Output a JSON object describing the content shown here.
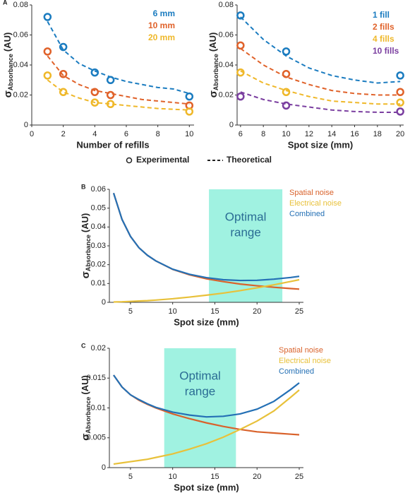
{
  "chart_data": [
    {
      "type": "scatter",
      "panel": "A",
      "xlabel": "Number of refills",
      "ylabel": {
        "symbol": "σ",
        "subscript": "Absorbance",
        "unit": "(AU)"
      },
      "xlim": [
        0,
        10.3
      ],
      "xticks": [
        0,
        2,
        4,
        6,
        8,
        10
      ],
      "ylim": [
        0,
        0.08
      ],
      "yticks": [
        0,
        0.02,
        0.04,
        0.06,
        0.08
      ],
      "x": [
        1,
        2,
        4,
        5,
        10
      ],
      "theory_x": [
        1,
        2,
        3,
        4,
        5,
        6,
        7,
        8,
        9,
        10
      ],
      "series": [
        {
          "name": "6 mm",
          "color": "#1b7cc0",
          "values": [
            0.072,
            0.052,
            0.035,
            0.03,
            0.019
          ],
          "theory_values": [
            0.069,
            0.05,
            0.041,
            0.036,
            0.032,
            0.029,
            0.027,
            0.025,
            0.024,
            0.021
          ]
        },
        {
          "name": "10 mm",
          "color": "#e0622a",
          "values": [
            0.049,
            0.034,
            0.022,
            0.02,
            0.013
          ],
          "theory_values": [
            0.046,
            0.033,
            0.027,
            0.023,
            0.021,
            0.019,
            0.017,
            0.016,
            0.015,
            0.014
          ]
        },
        {
          "name": "20 mm",
          "color": "#efb82a",
          "values": [
            0.033,
            0.022,
            0.015,
            0.014,
            0.009
          ],
          "theory_values": [
            0.03,
            0.022,
            0.018,
            0.015,
            0.014,
            0.013,
            0.012,
            0.011,
            0.0105,
            0.01
          ]
        }
      ],
      "marker_legend": {
        "experimental": "Experimental",
        "theoretical": "Theoretical"
      }
    },
    {
      "type": "scatter",
      "xlabel": "Spot size (mm)",
      "ylabel": {
        "symbol": "σ",
        "subscript": "Absorbance",
        "unit": "(AU)"
      },
      "xlim": [
        5.7,
        20.3
      ],
      "xticks": [
        6,
        8,
        10,
        12,
        14,
        16,
        18,
        20
      ],
      "ylim": [
        0,
        0.08
      ],
      "yticks": [
        0,
        0.02,
        0.04,
        0.06,
        0.08
      ],
      "x": [
        6,
        10,
        20
      ],
      "theory_x": [
        6,
        8,
        10,
        12,
        14,
        16,
        18,
        20
      ],
      "series": [
        {
          "name": "1 fill",
          "color": "#1b7cc0",
          "values": [
            0.073,
            0.049,
            0.033
          ],
          "theory_values": [
            0.072,
            0.057,
            0.046,
            0.038,
            0.033,
            0.03,
            0.028,
            0.029
          ]
        },
        {
          "name": "2 fills",
          "color": "#e0622a",
          "values": [
            0.053,
            0.034,
            0.022
          ],
          "theory_values": [
            0.051,
            0.04,
            0.032,
            0.027,
            0.023,
            0.021,
            0.02,
            0.02
          ]
        },
        {
          "name": "4 fills",
          "color": "#efb82a",
          "values": [
            0.035,
            0.022,
            0.015
          ],
          "theory_values": [
            0.036,
            0.028,
            0.023,
            0.019,
            0.016,
            0.015,
            0.014,
            0.014
          ]
        },
        {
          "name": "10 fills",
          "color": "#7b3fa0",
          "values": [
            0.019,
            0.013,
            0.009
          ],
          "theory_values": [
            0.022,
            0.017,
            0.014,
            0.012,
            0.01,
            0.009,
            0.0085,
            0.0085
          ]
        }
      ]
    },
    {
      "type": "line",
      "panel": "B",
      "xlabel": "Spot size (mm)",
      "ylabel": {
        "symbol": "σ",
        "subscript": "Absorbance",
        "unit": "(AU)"
      },
      "xlim": [
        2.5,
        25.5
      ],
      "xticks": [
        5,
        10,
        15,
        20,
        25
      ],
      "ylim": [
        0,
        0.06
      ],
      "yticks": [
        0,
        0.01,
        0.02,
        0.03,
        0.04,
        0.05,
        0.06
      ],
      "span": [
        14.3,
        23
      ],
      "span_color": "#8ff0dc",
      "span_label": [
        "Optimal",
        "range"
      ],
      "x": [
        3,
        4,
        5,
        6,
        7,
        8,
        10,
        12,
        14,
        16,
        18,
        20,
        22,
        24,
        25
      ],
      "series": [
        {
          "name": "Spatial noise",
          "color": "#d9622b",
          "values": [
            0.058,
            0.044,
            0.035,
            0.029,
            0.025,
            0.022,
            0.0175,
            0.0146,
            0.0125,
            0.011,
            0.0097,
            0.0088,
            0.008,
            0.0073,
            0.007
          ]
        },
        {
          "name": "Electrical noise",
          "color": "#e8c13a",
          "values": [
            0.0002,
            0.0003,
            0.0005,
            0.0007,
            0.0009,
            0.0012,
            0.0019,
            0.0028,
            0.0038,
            0.0049,
            0.0062,
            0.0077,
            0.0093,
            0.0111,
            0.012
          ]
        },
        {
          "name": "Combined",
          "color": "#2470b5",
          "values": [
            0.058,
            0.044,
            0.035,
            0.029,
            0.025,
            0.022,
            0.0176,
            0.0149,
            0.0131,
            0.012,
            0.0116,
            0.0117,
            0.0123,
            0.0132,
            0.0138
          ]
        }
      ]
    },
    {
      "type": "line",
      "panel": "C",
      "xlabel": "Spot size (mm)",
      "ylabel": {
        "symbol": "σ",
        "subscript": "Absorbance",
        "unit": "(AU)"
      },
      "xlim": [
        2.5,
        25.5
      ],
      "xticks": [
        5,
        10,
        15,
        20,
        25
      ],
      "ylim": [
        0,
        0.02
      ],
      "yticks": [
        0,
        0.005,
        0.01,
        0.015,
        0.02
      ],
      "span": [
        9,
        17.5
      ],
      "span_color": "#8ff0dc",
      "span_label": [
        "Optimal",
        "range"
      ],
      "x": [
        3,
        4,
        5,
        6,
        7,
        8,
        10,
        12,
        14,
        16,
        18,
        20,
        22,
        24,
        25
      ],
      "series": [
        {
          "name": "Spatial noise",
          "color": "#d9622b",
          "values": [
            0.0155,
            0.0135,
            0.0122,
            0.0113,
            0.0106,
            0.01,
            0.009,
            0.0082,
            0.0075,
            0.0069,
            0.0064,
            0.006,
            0.0058,
            0.0056,
            0.0055
          ]
        },
        {
          "name": "Electrical noise",
          "color": "#e8c13a",
          "values": [
            0.0006,
            0.0008,
            0.001,
            0.0012,
            0.0014,
            0.0017,
            0.0023,
            0.0031,
            0.004,
            0.0051,
            0.0064,
            0.0078,
            0.0095,
            0.0118,
            0.013
          ]
        },
        {
          "name": "Combined",
          "color": "#2470b5",
          "values": [
            0.0155,
            0.0135,
            0.0122,
            0.0114,
            0.0107,
            0.0101,
            0.0093,
            0.0088,
            0.0085,
            0.0086,
            0.009,
            0.0098,
            0.0111,
            0.0131,
            0.0142
          ]
        }
      ]
    }
  ]
}
